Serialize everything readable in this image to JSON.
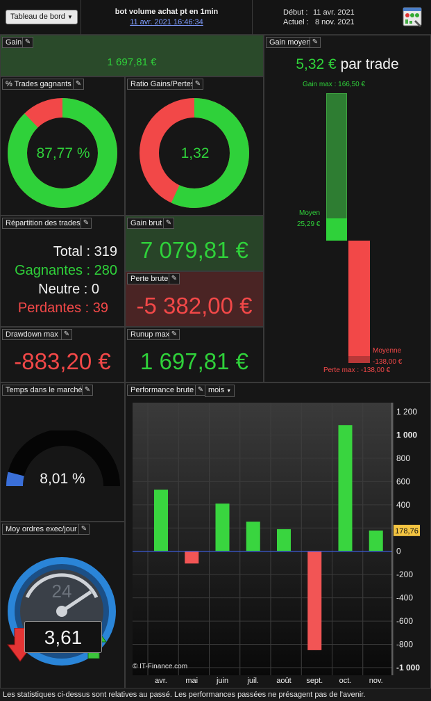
{
  "header": {
    "dashboard_select": "Tableau de bord",
    "strategy_name": "bot volume achat pt en 1min",
    "timestamp": "11 avr. 2021 16:46:34",
    "start_label": "Début :",
    "start_date": "11 avr. 2021",
    "current_label": "Actuel :",
    "current_date": "8 nov. 2021",
    "settings_icon": "dashboard-settings-icon"
  },
  "gain": {
    "title": "Gain",
    "value": "1 697,81 €"
  },
  "win_rate": {
    "title": "% Trades gagnants",
    "value": "87,77 %",
    "fraction": 0.8777
  },
  "ratio": {
    "title": "Ratio Gains/Pertes",
    "value": "1,32",
    "fraction": 0.5689
  },
  "average_gain": {
    "title": "Gain moyen",
    "value": "5,32 €",
    "suffix": "par trade",
    "max_gain_label": "Gain max : 166,50 €",
    "avg_label": "Moyen",
    "avg_value": "25,29 €",
    "avg_loss_label": "Moyenne",
    "avg_loss_value": "-138,00 €",
    "max_loss_label": "Perte max : -138,00 €",
    "max_gain": 166.5,
    "avg_gain": 25.29,
    "avg_loss": -138.0,
    "max_loss": -138.0
  },
  "distribution": {
    "title": "Répartition des trades",
    "total_label": "Total :",
    "total": "319",
    "winners_label": "Gagnantes :",
    "winners": "280",
    "neutral_label": "Neutre :",
    "neutral": "0",
    "losers_label": "Perdantes :",
    "losers": "39"
  },
  "gross_gain": {
    "title": "Gain brut",
    "value": "7 079,81 €"
  },
  "gross_loss": {
    "title": "Perte brute",
    "value": "-5 382,00 €"
  },
  "drawdown": {
    "title": "Drawdown max",
    "value": "-883,20 €"
  },
  "runup": {
    "title": "Runup max",
    "value": "1 697,81 €"
  },
  "time_in_market": {
    "title": "Temps dans le marché",
    "value": "8,01 %",
    "fraction": 0.0801
  },
  "orders_per_day": {
    "title": "Moy ordres exec/jour",
    "value": "3,61",
    "clock_label": "24"
  },
  "performance": {
    "title": "Performance brute",
    "period": "mois",
    "watermark": "© IT-Finance.com",
    "marker_value": "178,76"
  },
  "chart_data": {
    "type": "bar",
    "title": "Performance brute",
    "categories": [
      "avr.",
      "mai",
      "juin",
      "juil.",
      "août",
      "sept.",
      "oct.",
      "nov."
    ],
    "values": [
      530,
      -105,
      410,
      255,
      190,
      -850,
      1085,
      178.76
    ],
    "ylim": [
      -1000,
      1200
    ],
    "yticks": [
      1200,
      1000,
      800,
      600,
      400,
      200,
      0,
      -200,
      -400,
      -600,
      -800,
      -1000
    ],
    "ytick_labels": [
      "1 200",
      "1 000",
      "800",
      "600",
      "400",
      "200",
      "0",
      "-200",
      "-400",
      "-600",
      "-800",
      "-1 000"
    ],
    "grid": true,
    "colors": {
      "positive": "#39d53f",
      "negative": "#f25555"
    }
  },
  "footer": {
    "disclaimer": "Les statistiques ci-dessus sont relatives au passé. Les performances passées ne présagent pas de l'avenir."
  }
}
